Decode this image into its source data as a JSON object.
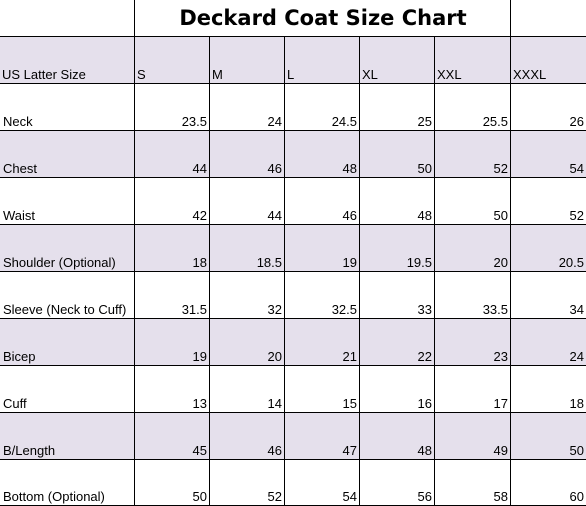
{
  "title": "Deckard Coat Size Chart",
  "header": {
    "label": "US Latter Size",
    "sizes": [
      "S",
      "M",
      "L",
      "XL",
      "XXL",
      "XXXL"
    ]
  },
  "rows": [
    {
      "label": "Neck",
      "values": [
        "23.5",
        "24",
        "24.5",
        "25",
        "25.5",
        "26"
      ]
    },
    {
      "label": "Chest",
      "values": [
        "44",
        "46",
        "48",
        "50",
        "52",
        "54"
      ]
    },
    {
      "label": "Waist",
      "values": [
        "42",
        "44",
        "46",
        "48",
        "50",
        "52"
      ]
    },
    {
      "label": "Shoulder (Optional)",
      "values": [
        "18",
        "18.5",
        "19",
        "19.5",
        "20",
        "20.5"
      ]
    },
    {
      "label": "Sleeve (Neck to Cuff)",
      "values": [
        "31.5",
        "32",
        "32.5",
        "33",
        "33.5",
        "34"
      ]
    },
    {
      "label": "Bicep",
      "values": [
        "19",
        "20",
        "21",
        "22",
        "23",
        "24"
      ]
    },
    {
      "label": "Cuff",
      "values": [
        "13",
        "14",
        "15",
        "16",
        "17",
        "18"
      ]
    },
    {
      "label": "B/Length",
      "values": [
        "45",
        "46",
        "47",
        "48",
        "49",
        "50"
      ]
    },
    {
      "label": "Bottom (Optional)",
      "values": [
        "50",
        "52",
        "54",
        "56",
        "58",
        "60"
      ]
    }
  ],
  "colors": {
    "row_shade": "#e5e0ec",
    "grid_line": "#000000"
  }
}
